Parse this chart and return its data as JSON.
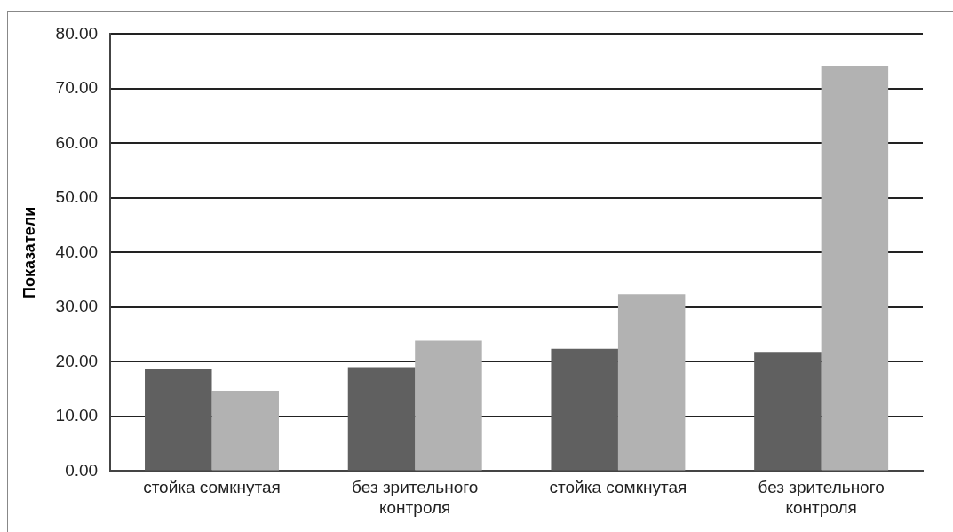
{
  "chart_data": {
    "type": "bar",
    "ylabel": "Показатели",
    "categories": [
      "стойка сомкнутая",
      "без зрительного контроля",
      "стойка сомкнутая",
      "без зрительного контроля"
    ],
    "series": [
      {
        "color": "#606060",
        "values": [
          18.6,
          19.0,
          22.4,
          21.8
        ]
      },
      {
        "color": "#b2b2b2",
        "values": [
          14.7,
          23.9,
          32.4,
          74.2
        ]
      }
    ],
    "ylim": [
      0,
      80
    ],
    "yticks": [
      {
        "value": 0,
        "label": "0.00"
      },
      {
        "value": 10,
        "label": "10.00"
      },
      {
        "value": 20,
        "label": "20.00"
      },
      {
        "value": 30,
        "label": "30.00"
      },
      {
        "value": 40,
        "label": "40.00"
      },
      {
        "value": 50,
        "label": "50.00"
      },
      {
        "value": 60,
        "label": "60.00"
      },
      {
        "value": 70,
        "label": "70.00"
      },
      {
        "value": 80,
        "label": "80.00"
      }
    ],
    "grid": "y",
    "legend": false
  }
}
